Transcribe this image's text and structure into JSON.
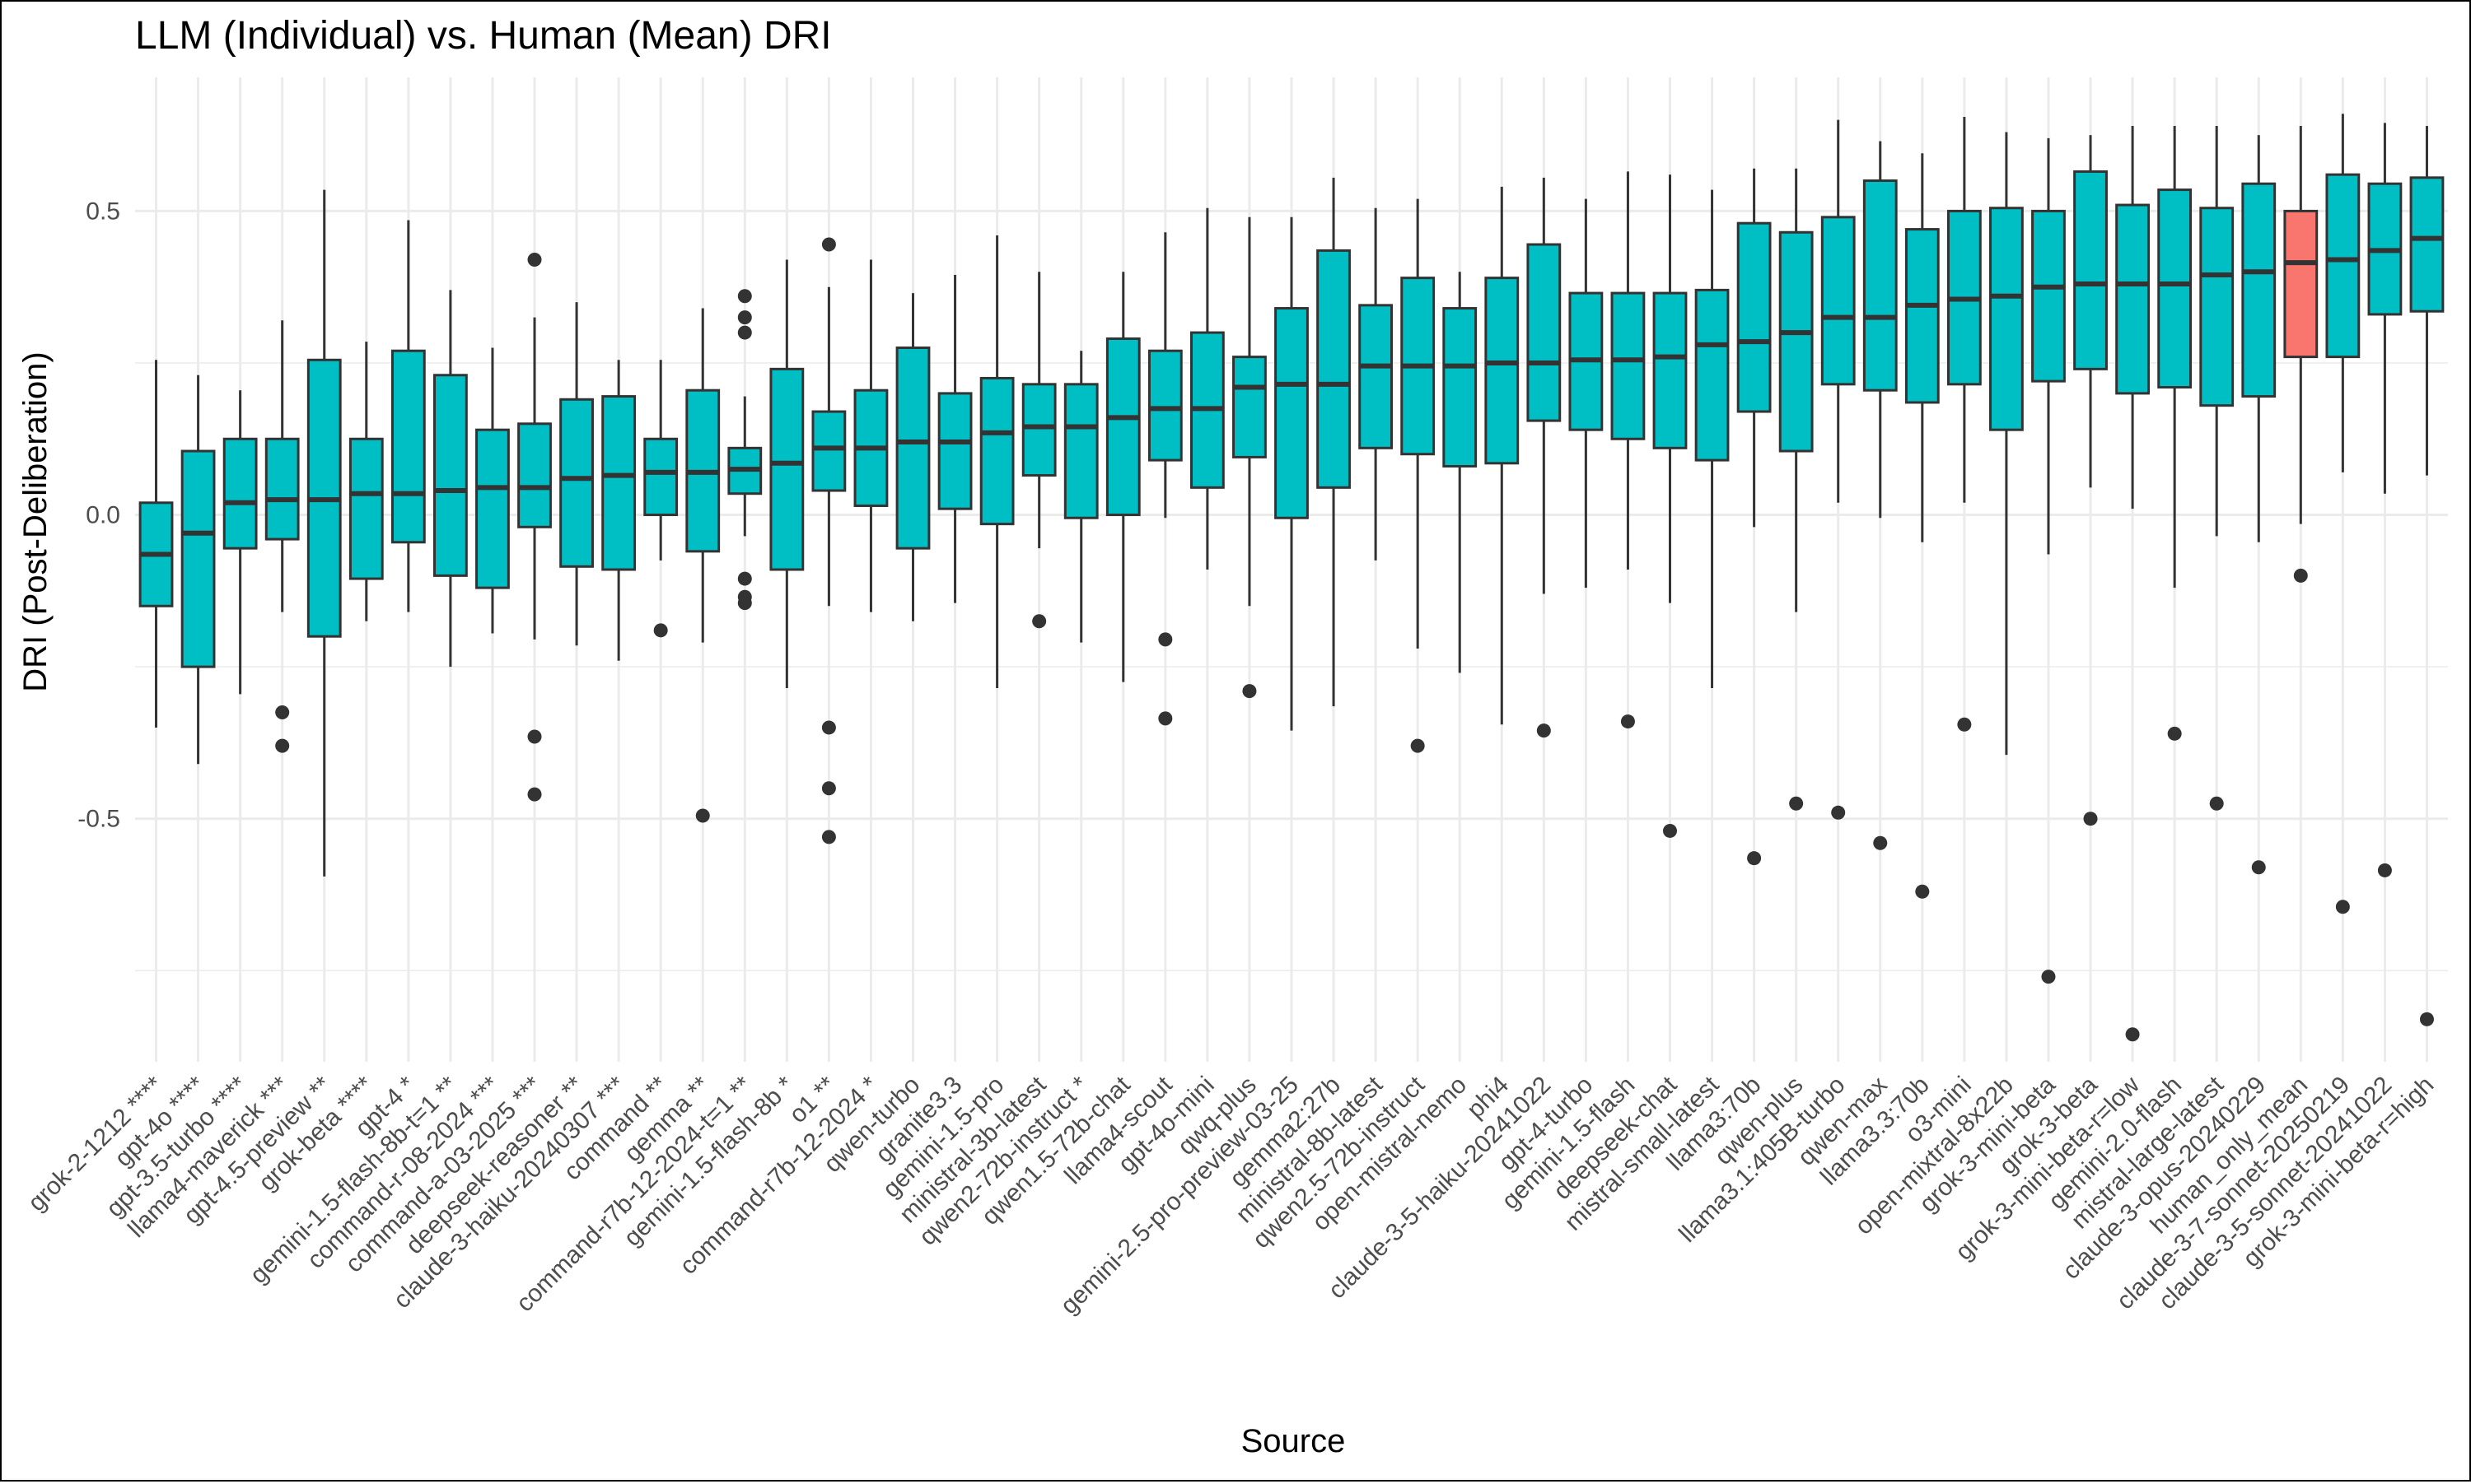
{
  "chart_data": {
    "type": "box",
    "title": "LLM (Individual) vs. Human (Mean) DRI",
    "xlabel": "Source",
    "ylabel": "DRI (Post-Deliberation)",
    "ylim": [
      -0.9,
      0.72
    ],
    "yticks": [
      {
        "value": -0.5,
        "label": "-0.5"
      },
      {
        "value": 0.0,
        "label": "0.0"
      },
      {
        "value": 0.5,
        "label": "0.5"
      }
    ],
    "grid": true,
    "legend": "none",
    "colors": {
      "llm": "#00BFC4",
      "human": "#F8766D",
      "outline": "#333333",
      "grid": "#ebebeb"
    },
    "series": [
      {
        "label": "grok-2-1212 ****",
        "group": "llm",
        "whisker_low": -0.35,
        "q1": -0.15,
        "median": -0.065,
        "q3": 0.02,
        "whisker_high": 0.255,
        "outliers": []
      },
      {
        "label": "gpt-4o ****",
        "group": "llm",
        "whisker_low": -0.41,
        "q1": -0.25,
        "median": -0.03,
        "q3": 0.105,
        "whisker_high": 0.23,
        "outliers": []
      },
      {
        "label": "gpt-3.5-turbo ****",
        "group": "llm",
        "whisker_low": -0.295,
        "q1": -0.055,
        "median": 0.02,
        "q3": 0.125,
        "whisker_high": 0.205,
        "outliers": []
      },
      {
        "label": "llama4-maverick ***",
        "group": "llm",
        "whisker_low": -0.16,
        "q1": -0.04,
        "median": 0.025,
        "q3": 0.125,
        "whisker_high": 0.32,
        "outliers": [
          -0.325,
          -0.38
        ]
      },
      {
        "label": "gpt-4.5-preview **",
        "group": "llm",
        "whisker_low": -0.595,
        "q1": -0.2,
        "median": 0.025,
        "q3": 0.255,
        "whisker_high": 0.535,
        "outliers": []
      },
      {
        "label": "grok-beta ****",
        "group": "llm",
        "whisker_low": -0.175,
        "q1": -0.105,
        "median": 0.035,
        "q3": 0.125,
        "whisker_high": 0.285,
        "outliers": []
      },
      {
        "label": "gpt-4 *",
        "group": "llm",
        "whisker_low": -0.16,
        "q1": -0.045,
        "median": 0.035,
        "q3": 0.27,
        "whisker_high": 0.485,
        "outliers": []
      },
      {
        "label": "gemini-1.5-flash-8b-t=1 **",
        "group": "llm",
        "whisker_low": -0.25,
        "q1": -0.1,
        "median": 0.04,
        "q3": 0.23,
        "whisker_high": 0.37,
        "outliers": []
      },
      {
        "label": "command-r-08-2024 ***",
        "group": "llm",
        "whisker_low": -0.195,
        "q1": -0.12,
        "median": 0.045,
        "q3": 0.14,
        "whisker_high": 0.275,
        "outliers": []
      },
      {
        "label": "command-a-03-2025 ***",
        "group": "llm",
        "whisker_low": -0.205,
        "q1": -0.02,
        "median": 0.045,
        "q3": 0.15,
        "whisker_high": 0.325,
        "outliers": [
          0.42,
          -0.365,
          -0.46
        ]
      },
      {
        "label": "deepseek-reasoner **",
        "group": "llm",
        "whisker_low": -0.215,
        "q1": -0.085,
        "median": 0.06,
        "q3": 0.19,
        "whisker_high": 0.35,
        "outliers": []
      },
      {
        "label": "claude-3-haiku-20240307 ***",
        "group": "llm",
        "whisker_low": -0.24,
        "q1": -0.09,
        "median": 0.065,
        "q3": 0.195,
        "whisker_high": 0.255,
        "outliers": []
      },
      {
        "label": "command **",
        "group": "llm",
        "whisker_low": -0.075,
        "q1": 0.0,
        "median": 0.07,
        "q3": 0.125,
        "whisker_high": 0.255,
        "outliers": [
          -0.19
        ]
      },
      {
        "label": "gemma **",
        "group": "llm",
        "whisker_low": -0.21,
        "q1": -0.06,
        "median": 0.07,
        "q3": 0.205,
        "whisker_high": 0.34,
        "outliers": [
          -0.495
        ]
      },
      {
        "label": "command-r7b-12-2024-t=1 **",
        "group": "llm",
        "whisker_low": -0.035,
        "q1": 0.035,
        "median": 0.075,
        "q3": 0.11,
        "whisker_high": 0.195,
        "outliers": [
          0.36,
          0.325,
          0.3,
          -0.105,
          -0.135,
          -0.145
        ]
      },
      {
        "label": "gemini-1.5-flash-8b *",
        "group": "llm",
        "whisker_low": -0.285,
        "q1": -0.09,
        "median": 0.085,
        "q3": 0.24,
        "whisker_high": 0.42,
        "outliers": []
      },
      {
        "label": "o1 **",
        "group": "llm",
        "whisker_low": -0.15,
        "q1": 0.04,
        "median": 0.11,
        "q3": 0.17,
        "whisker_high": 0.375,
        "outliers": [
          0.445,
          -0.35,
          -0.45,
          -0.53
        ]
      },
      {
        "label": "command-r7b-12-2024 *",
        "group": "llm",
        "whisker_low": -0.16,
        "q1": 0.015,
        "median": 0.11,
        "q3": 0.205,
        "whisker_high": 0.42,
        "outliers": []
      },
      {
        "label": "qwen-turbo",
        "group": "llm",
        "whisker_low": -0.175,
        "q1": -0.055,
        "median": 0.12,
        "q3": 0.275,
        "whisker_high": 0.365,
        "outliers": []
      },
      {
        "label": "granite3.3",
        "group": "llm",
        "whisker_low": -0.145,
        "q1": 0.01,
        "median": 0.12,
        "q3": 0.2,
        "whisker_high": 0.395,
        "outliers": []
      },
      {
        "label": "gemini-1.5-pro",
        "group": "llm",
        "whisker_low": -0.285,
        "q1": -0.015,
        "median": 0.135,
        "q3": 0.225,
        "whisker_high": 0.46,
        "outliers": []
      },
      {
        "label": "ministral-3b-latest",
        "group": "llm",
        "whisker_low": -0.055,
        "q1": 0.065,
        "median": 0.145,
        "q3": 0.215,
        "whisker_high": 0.4,
        "outliers": [
          -0.175
        ]
      },
      {
        "label": "qwen2-72b-instruct *",
        "group": "llm",
        "whisker_low": -0.21,
        "q1": -0.005,
        "median": 0.145,
        "q3": 0.215,
        "whisker_high": 0.27,
        "outliers": []
      },
      {
        "label": "qwen1.5-72b-chat",
        "group": "llm",
        "whisker_low": -0.275,
        "q1": 0.0,
        "median": 0.16,
        "q3": 0.29,
        "whisker_high": 0.4,
        "outliers": []
      },
      {
        "label": "llama4-scout",
        "group": "llm",
        "whisker_low": -0.005,
        "q1": 0.09,
        "median": 0.175,
        "q3": 0.27,
        "whisker_high": 0.465,
        "outliers": [
          -0.205,
          -0.335
        ]
      },
      {
        "label": "gpt-4o-mini",
        "group": "llm",
        "whisker_low": -0.09,
        "q1": 0.045,
        "median": 0.175,
        "q3": 0.3,
        "whisker_high": 0.505,
        "outliers": []
      },
      {
        "label": "qwq-plus",
        "group": "llm",
        "whisker_low": -0.15,
        "q1": 0.095,
        "median": 0.21,
        "q3": 0.26,
        "whisker_high": 0.49,
        "outliers": [
          -0.29
        ]
      },
      {
        "label": "gemini-2.5-pro-preview-03-25",
        "group": "llm",
        "whisker_low": -0.355,
        "q1": -0.005,
        "median": 0.215,
        "q3": 0.34,
        "whisker_high": 0.49,
        "outliers": []
      },
      {
        "label": "gemma2:27b",
        "group": "llm",
        "whisker_low": -0.315,
        "q1": 0.045,
        "median": 0.215,
        "q3": 0.435,
        "whisker_high": 0.555,
        "outliers": []
      },
      {
        "label": "ministral-8b-latest",
        "group": "llm",
        "whisker_low": -0.075,
        "q1": 0.11,
        "median": 0.245,
        "q3": 0.345,
        "whisker_high": 0.505,
        "outliers": []
      },
      {
        "label": "qwen2.5-72b-instruct",
        "group": "llm",
        "whisker_low": -0.22,
        "q1": 0.1,
        "median": 0.245,
        "q3": 0.39,
        "whisker_high": 0.52,
        "outliers": [
          -0.38
        ]
      },
      {
        "label": "open-mistral-nemo",
        "group": "llm",
        "whisker_low": -0.26,
        "q1": 0.08,
        "median": 0.245,
        "q3": 0.34,
        "whisker_high": 0.4,
        "outliers": []
      },
      {
        "label": "phi4",
        "group": "llm",
        "whisker_low": -0.345,
        "q1": 0.085,
        "median": 0.25,
        "q3": 0.39,
        "whisker_high": 0.54,
        "outliers": []
      },
      {
        "label": "claude-3-5-haiku-20241022",
        "group": "llm",
        "whisker_low": -0.13,
        "q1": 0.155,
        "median": 0.25,
        "q3": 0.445,
        "whisker_high": 0.555,
        "outliers": [
          -0.355
        ]
      },
      {
        "label": "gpt-4-turbo",
        "group": "llm",
        "whisker_low": -0.12,
        "q1": 0.14,
        "median": 0.255,
        "q3": 0.365,
        "whisker_high": 0.52,
        "outliers": []
      },
      {
        "label": "gemini-1.5-flash",
        "group": "llm",
        "whisker_low": -0.09,
        "q1": 0.125,
        "median": 0.255,
        "q3": 0.365,
        "whisker_high": 0.565,
        "outliers": [
          -0.34
        ]
      },
      {
        "label": "deepseek-chat",
        "group": "llm",
        "whisker_low": -0.145,
        "q1": 0.11,
        "median": 0.26,
        "q3": 0.365,
        "whisker_high": 0.56,
        "outliers": [
          -0.52
        ]
      },
      {
        "label": "mistral-small-latest",
        "group": "llm",
        "whisker_low": -0.285,
        "q1": 0.09,
        "median": 0.28,
        "q3": 0.37,
        "whisker_high": 0.535,
        "outliers": []
      },
      {
        "label": "llama3:70b",
        "group": "llm",
        "whisker_low": -0.02,
        "q1": 0.17,
        "median": 0.285,
        "q3": 0.48,
        "whisker_high": 0.57,
        "outliers": [
          -0.565
        ]
      },
      {
        "label": "qwen-plus",
        "group": "llm",
        "whisker_low": -0.16,
        "q1": 0.105,
        "median": 0.3,
        "q3": 0.465,
        "whisker_high": 0.57,
        "outliers": [
          -0.475
        ]
      },
      {
        "label": "llama3.1:405B-turbo",
        "group": "llm",
        "whisker_low": 0.02,
        "q1": 0.215,
        "median": 0.325,
        "q3": 0.49,
        "whisker_high": 0.65,
        "outliers": [
          -0.49
        ]
      },
      {
        "label": "qwen-max",
        "group": "llm",
        "whisker_low": -0.005,
        "q1": 0.205,
        "median": 0.325,
        "q3": 0.55,
        "whisker_high": 0.615,
        "outliers": [
          -0.54
        ]
      },
      {
        "label": "llama3.3:70b",
        "group": "llm",
        "whisker_low": -0.045,
        "q1": 0.185,
        "median": 0.345,
        "q3": 0.47,
        "whisker_high": 0.595,
        "outliers": [
          -0.62
        ]
      },
      {
        "label": "o3-mini",
        "group": "llm",
        "whisker_low": 0.02,
        "q1": 0.215,
        "median": 0.355,
        "q3": 0.5,
        "whisker_high": 0.655,
        "outliers": [
          -0.345
        ]
      },
      {
        "label": "open-mixtral-8x22b",
        "group": "llm",
        "whisker_low": -0.395,
        "q1": 0.14,
        "median": 0.36,
        "q3": 0.505,
        "whisker_high": 0.63,
        "outliers": []
      },
      {
        "label": "grok-3-mini-beta",
        "group": "llm",
        "whisker_low": -0.065,
        "q1": 0.22,
        "median": 0.375,
        "q3": 0.5,
        "whisker_high": 0.62,
        "outliers": [
          -0.76
        ]
      },
      {
        "label": "grok-3-beta",
        "group": "llm",
        "whisker_low": 0.045,
        "q1": 0.24,
        "median": 0.38,
        "q3": 0.565,
        "whisker_high": 0.625,
        "outliers": [
          -0.5
        ]
      },
      {
        "label": "grok-3-mini-beta-r=low",
        "group": "llm",
        "whisker_low": 0.01,
        "q1": 0.2,
        "median": 0.38,
        "q3": 0.51,
        "whisker_high": 0.64,
        "outliers": [
          -0.855
        ]
      },
      {
        "label": "gemini-2.0-flash",
        "group": "llm",
        "whisker_low": -0.12,
        "q1": 0.21,
        "median": 0.38,
        "q3": 0.535,
        "whisker_high": 0.64,
        "outliers": [
          -0.36
        ]
      },
      {
        "label": "mistral-large-latest",
        "group": "llm",
        "whisker_low": -0.035,
        "q1": 0.18,
        "median": 0.395,
        "q3": 0.505,
        "whisker_high": 0.64,
        "outliers": [
          -0.475
        ]
      },
      {
        "label": "claude-3-opus-20240229",
        "group": "llm",
        "whisker_low": -0.045,
        "q1": 0.195,
        "median": 0.4,
        "q3": 0.545,
        "whisker_high": 0.625,
        "outliers": [
          -0.58
        ]
      },
      {
        "label": "human_only_mean",
        "group": "human",
        "whisker_low": -0.015,
        "q1": 0.26,
        "median": 0.415,
        "q3": 0.5,
        "whisker_high": 0.64,
        "outliers": [
          -0.1
        ]
      },
      {
        "label": "claude-3-7-sonnet-20250219",
        "group": "llm",
        "whisker_low": 0.07,
        "q1": 0.26,
        "median": 0.42,
        "q3": 0.56,
        "whisker_high": 0.66,
        "outliers": [
          -0.645
        ]
      },
      {
        "label": "claude-3-5-sonnet-20241022",
        "group": "llm",
        "whisker_low": 0.035,
        "q1": 0.33,
        "median": 0.435,
        "q3": 0.545,
        "whisker_high": 0.645,
        "outliers": [
          -0.585
        ]
      },
      {
        "label": "grok-3-mini-beta-r=high",
        "group": "llm",
        "whisker_low": 0.065,
        "q1": 0.335,
        "median": 0.455,
        "q3": 0.555,
        "whisker_high": 0.64,
        "outliers": [
          -0.83
        ]
      }
    ]
  }
}
